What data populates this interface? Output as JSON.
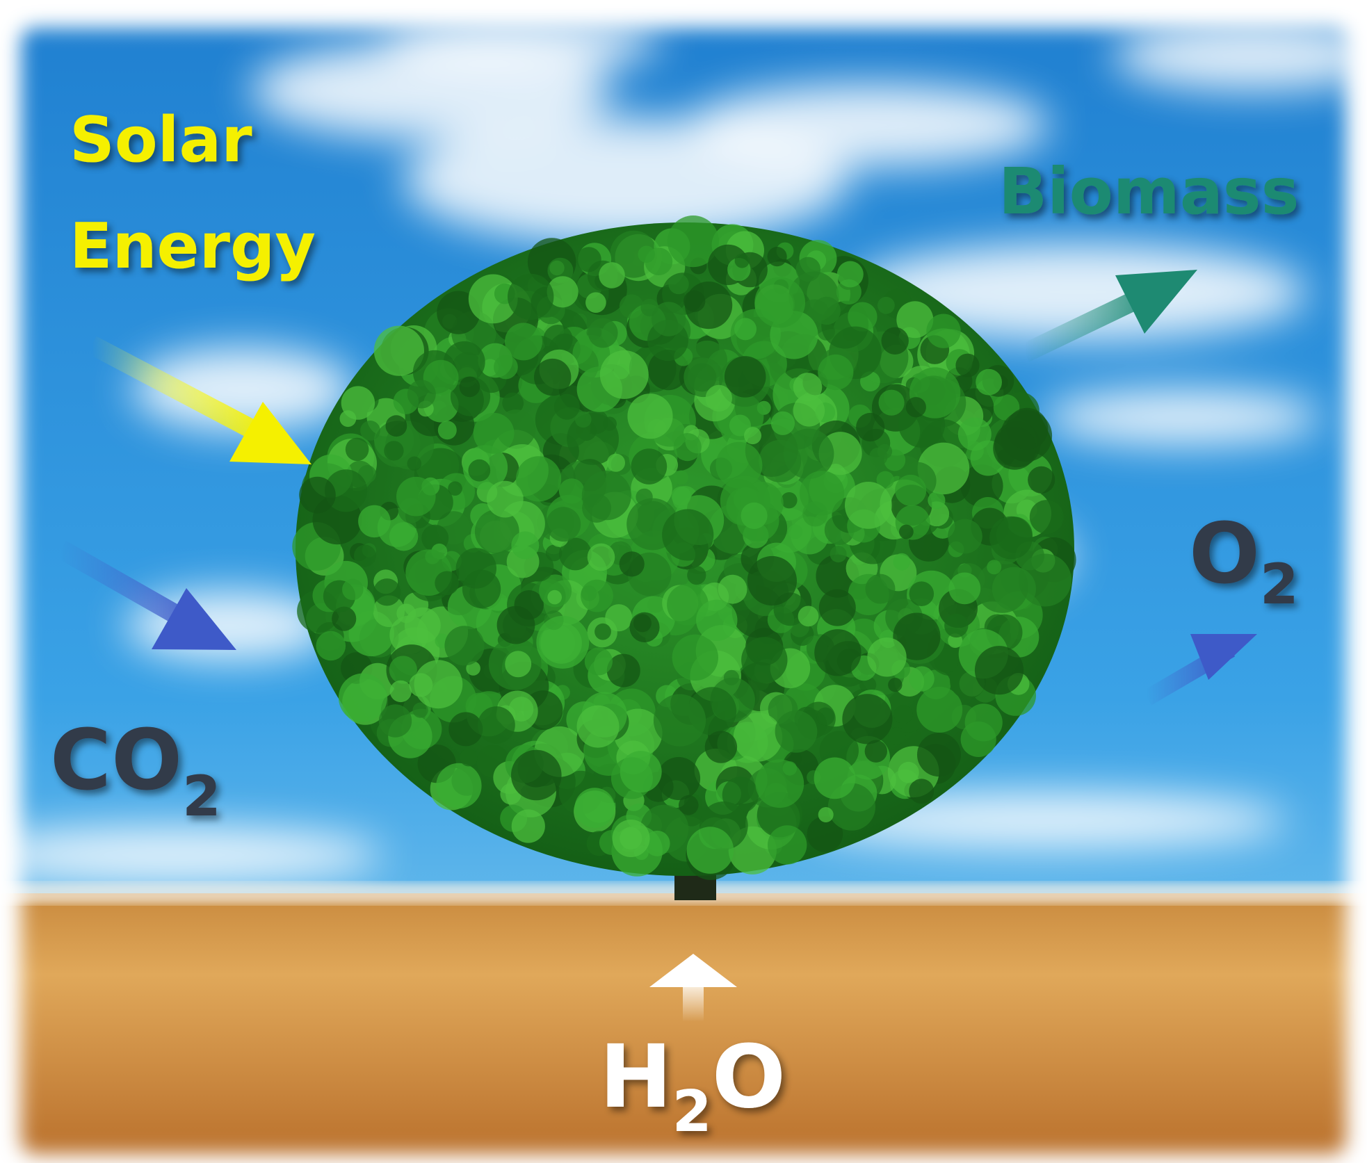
{
  "labels": {
    "solar": [
      "Solar",
      "Energy"
    ],
    "biomass": "Biomass",
    "o2": {
      "text": "O",
      "sub": "2"
    },
    "co2": {
      "text": "CO",
      "sub": "2"
    },
    "h2o": {
      "text": "H",
      "sub": "2",
      "after": "O"
    }
  }
}
